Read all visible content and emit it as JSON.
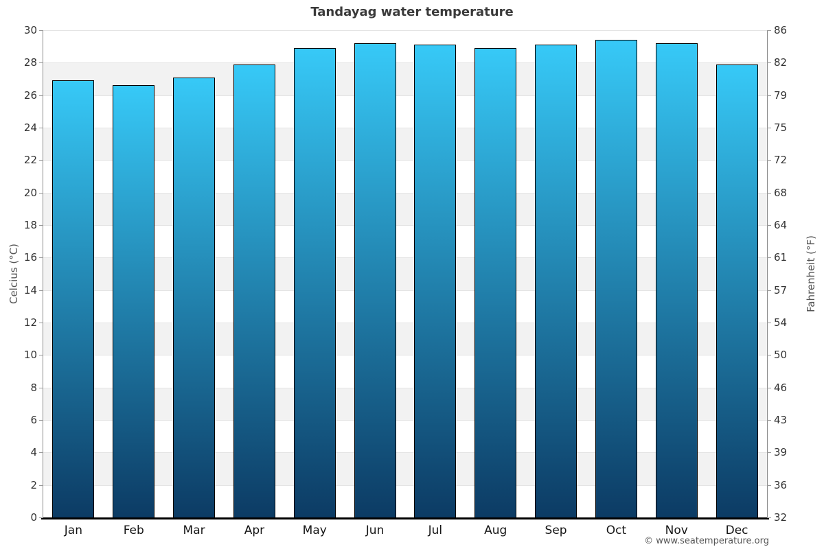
{
  "chart_data": {
    "type": "bar",
    "title": "Tandayag water temperature",
    "categories": [
      "Jan",
      "Feb",
      "Mar",
      "Apr",
      "May",
      "Jun",
      "Jul",
      "Aug",
      "Sep",
      "Oct",
      "Nov",
      "Dec"
    ],
    "values": [
      26.9,
      26.6,
      27.1,
      27.9,
      28.9,
      29.2,
      29.1,
      28.9,
      29.1,
      29.4,
      29.2,
      27.9
    ],
    "ylabel_left": "Celcius (°C)",
    "ylabel_right": "Fahrenheit (°F)",
    "ylim": [
      0,
      30
    ],
    "yticks_left": [
      "30",
      "28",
      "26",
      "24",
      "22",
      "20",
      "18",
      "16",
      "14",
      "12",
      "10",
      "8",
      "6",
      "4",
      "2",
      "0"
    ],
    "yticks_right": [
      "86",
      "82",
      "79",
      "75",
      "72",
      "68",
      "64",
      "61",
      "57",
      "54",
      "50",
      "46",
      "43",
      "39",
      "36",
      "32"
    ],
    "xlabel": "",
    "legend": "none",
    "grid": "horizontal-bands",
    "colors": {
      "bar_gradient_top": "#37c9f7",
      "bar_gradient_bottom": "#0c3b64",
      "bar_border": "#000000",
      "band_alt": "#f2f2f2",
      "gridline": "#e4e4e4",
      "axis_line": "#8a8a8a",
      "baseline": "#000000",
      "title_text": "#3a3a3a",
      "tick_text": "#333333"
    }
  },
  "footer": {
    "copyright": "© www.seatemperature.org"
  }
}
